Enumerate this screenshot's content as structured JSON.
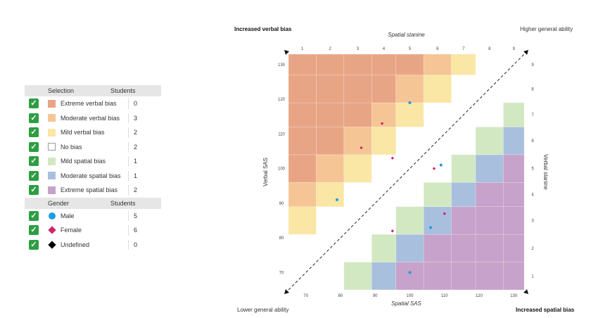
{
  "legend": {
    "selection_header": "Selection",
    "students_header": "Students",
    "items": [
      {
        "label": "Extreme verbal bias",
        "count": "0",
        "color": "#e8a585"
      },
      {
        "label": "Moderate verbal bias",
        "count": "3",
        "color": "#f6c595"
      },
      {
        "label": "Mild verbal bias",
        "count": "2",
        "color": "#fae6a5"
      },
      {
        "label": "No bias",
        "count": "2",
        "color": "#ffffff"
      },
      {
        "label": "Mild spatial bias",
        "count": "1",
        "color": "#d2e8c2"
      },
      {
        "label": "Moderate spatial bias",
        "count": "1",
        "color": "#a9bfde"
      },
      {
        "label": "Extreme spatial bias",
        "count": "2",
        "color": "#c7a2ca"
      }
    ],
    "gender_header": "Gender",
    "gender_students_header": "Students",
    "genders": [
      {
        "label": "Male",
        "count": "5",
        "shape": "circle",
        "color": "#1d9de0"
      },
      {
        "label": "Female",
        "count": "6",
        "shape": "diamond",
        "color": "#d2236b"
      },
      {
        "label": "Undefined",
        "count": "0",
        "shape": "diamond",
        "color": "#000000"
      }
    ],
    "check_glyph": "✓"
  },
  "corners": {
    "top_left": "Increased verbal bias",
    "top_right": "Higher general ability",
    "bottom_left": "Lower general ability",
    "bottom_right": "Increased spatial bias"
  },
  "chart_data": {
    "type": "scatter",
    "title": "",
    "xlabel": "Spatial SAS",
    "ylabel": "Verbal SAS",
    "x2label": "Spatial stanine",
    "y2label": "Verbal stanine",
    "xlim": [
      65,
      133
    ],
    "ylim": [
      65,
      133
    ],
    "x_ticks": [
      "70",
      "80",
      "90",
      "100",
      "110",
      "120",
      "130"
    ],
    "y_ticks": [
      "70",
      "80",
      "90",
      "100",
      "110",
      "120",
      "130"
    ],
    "stanine_ticks": [
      "1",
      "2",
      "3",
      "4",
      "5",
      "6",
      "7",
      "8",
      "9"
    ],
    "stanine_bounds": [
      65,
      73,
      81,
      89,
      96,
      104,
      112,
      119,
      127,
      133
    ],
    "diagonal": "dashed",
    "bias_zones": [
      {
        "name": "Extreme verbal bias",
        "min_diff": 4,
        "max_diff": 8,
        "color": "#e8a585"
      },
      {
        "name": "Moderate verbal bias",
        "min_diff": 3,
        "max_diff": 3,
        "color": "#f6c595"
      },
      {
        "name": "Mild verbal bias",
        "min_diff": 2,
        "max_diff": 2,
        "color": "#fae6a5"
      },
      {
        "name": "Mild spatial bias",
        "min_diff": -2,
        "max_diff": -2,
        "color": "#d2e8c2"
      },
      {
        "name": "Moderate spatial bias",
        "min_diff": -3,
        "max_diff": -3,
        "color": "#a9bfde"
      },
      {
        "name": "Extreme spatial bias",
        "min_diff": -8,
        "max_diff": -4,
        "color": "#c7a2ca"
      }
    ],
    "series": [
      {
        "name": "Male",
        "color": "#1d9de0",
        "points": [
          [
            100,
            119
          ],
          [
            79,
            91
          ],
          [
            109,
            101
          ],
          [
            106,
            83
          ],
          [
            100,
            70
          ]
        ]
      },
      {
        "name": "Female",
        "color": "#d2236b",
        "points": [
          [
            92,
            113
          ],
          [
            86,
            106
          ],
          [
            95,
            103
          ],
          [
            107,
            100
          ],
          [
            110,
            87
          ],
          [
            95,
            82
          ]
        ]
      }
    ]
  }
}
